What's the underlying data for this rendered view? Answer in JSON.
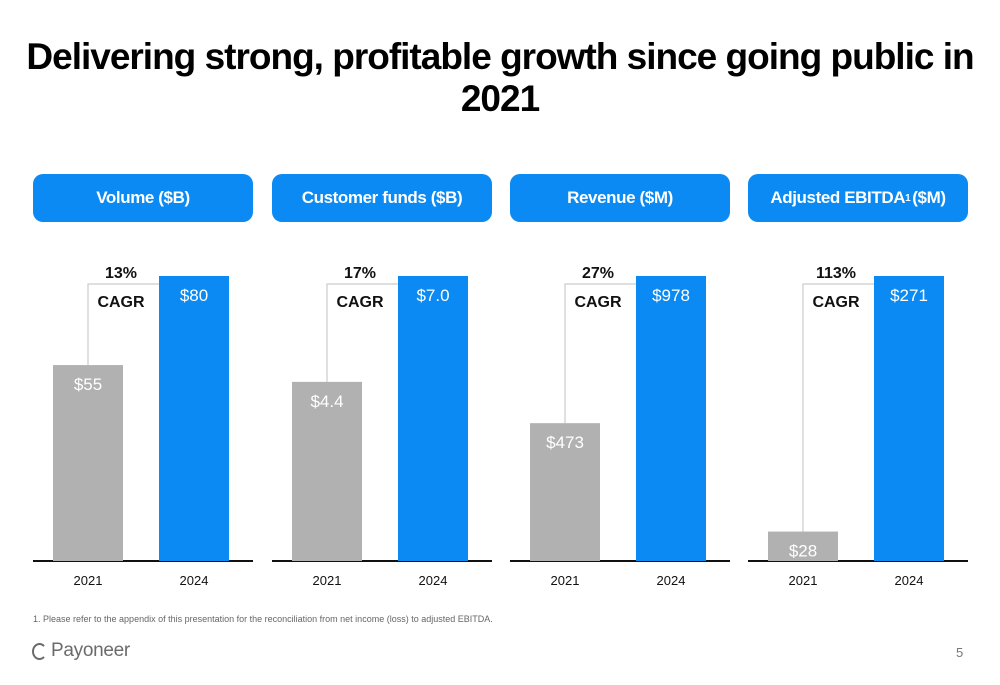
{
  "slide": {
    "title": "Delivering strong, profitable growth since going public in 2021",
    "footnote": "1. Please refer to the appendix of this presentation for the reconciliation from net income (loss) to adjusted EBITDA.",
    "logo_text": "Payoneer",
    "page_number": "5"
  },
  "colors": {
    "accent": "#0a8af2",
    "baseline": "#b1b1b1",
    "bracket": "#cccccc"
  },
  "chart_data": [
    {
      "type": "bar",
      "title": "Volume ($B)",
      "categories": [
        "2021",
        "2024"
      ],
      "values": [
        55,
        80
      ],
      "value_labels": [
        "$55",
        "$80"
      ],
      "cagr_value": "13%",
      "cagr_word": "CAGR",
      "ylim": [
        0,
        80
      ]
    },
    {
      "type": "bar",
      "title": "Customer funds ($B)",
      "categories": [
        "2021",
        "2024"
      ],
      "values": [
        4.4,
        7.0
      ],
      "value_labels": [
        "$4.4",
        "$7.0"
      ],
      "cagr_value": "17%",
      "cagr_word": "CAGR",
      "ylim": [
        0,
        7.0
      ]
    },
    {
      "type": "bar",
      "title": "Revenue ($M)",
      "categories": [
        "2021",
        "2024"
      ],
      "values": [
        473,
        978
      ],
      "value_labels": [
        "$473",
        "$978"
      ],
      "cagr_value": "27%",
      "cagr_word": "CAGR",
      "ylim": [
        0,
        978
      ]
    },
    {
      "type": "bar",
      "title": "Adjusted EBITDA",
      "title_sup": "1",
      "title_suffix": " ($M)",
      "categories": [
        "2021",
        "2024"
      ],
      "values": [
        28,
        271
      ],
      "value_labels": [
        "$28",
        "$271"
      ],
      "cagr_value": "113%",
      "cagr_word": "CAGR",
      "ylim": [
        0,
        271
      ]
    }
  ]
}
